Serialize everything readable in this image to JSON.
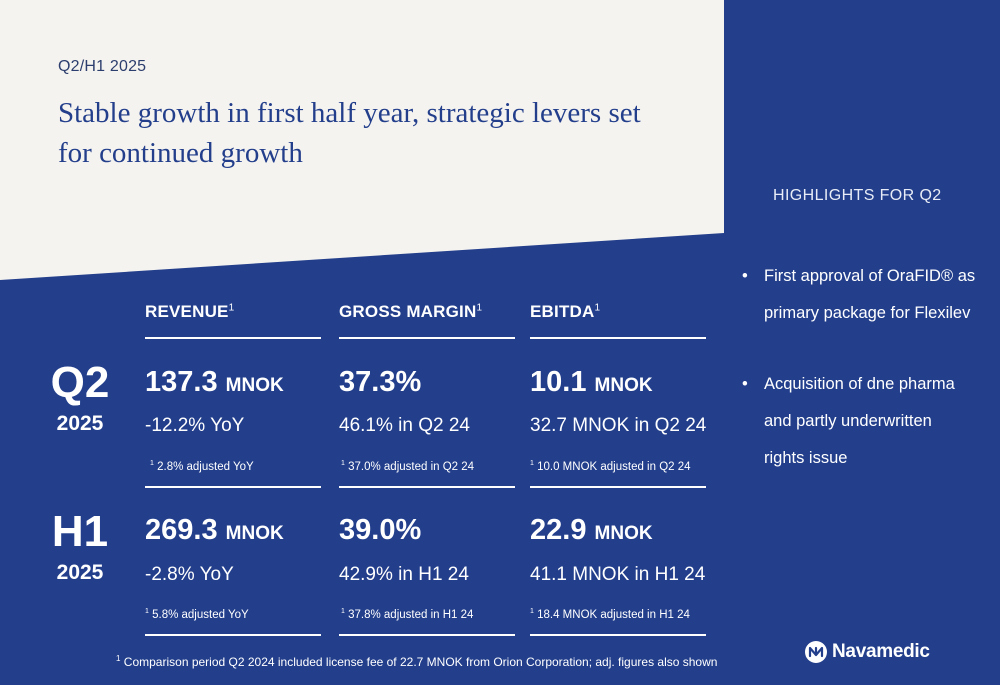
{
  "header": {
    "period": "Q2/H1 2025",
    "headline": "Stable growth in first half year, strategic levers set for continued growth"
  },
  "highlights": {
    "title": "HIGHLIGHTS FOR Q2",
    "items": [
      {
        "bullet": "•",
        "line1": "First approval of OraFID® as",
        "line2": "primary package for Flexilev",
        "line3": ""
      },
      {
        "bullet": "•",
        "line1": "Acquisition of dne pharma",
        "line2": "and partly underwritten",
        "line3": "rights issue"
      }
    ]
  },
  "columns": [
    {
      "label": "REVENUE",
      "sup": "1"
    },
    {
      "label": "GROSS MARGIN",
      "sup": "1"
    },
    {
      "label": "EBITDA",
      "sup": "1"
    }
  ],
  "periods": {
    "q2": {
      "big": "Q2",
      "year": "2025",
      "revenue": {
        "value": "137.3",
        "unit": "MNOK",
        "sub": "-12.2% YoY",
        "note_sup": "1",
        "note": "2.8% adjusted YoY"
      },
      "gross_margin": {
        "value": "37.3%",
        "unit": "",
        "sub": "46.1% in Q2 24",
        "note_sup": "1",
        "note": "37.0% adjusted in Q2 24"
      },
      "ebitda": {
        "value": "10.1",
        "unit": "MNOK",
        "sub": "32.7 MNOK in Q2 24",
        "note_sup": "1",
        "note": "10.0 MNOK adjusted in Q2 24"
      }
    },
    "h1": {
      "big": "H1",
      "year": "2025",
      "revenue": {
        "value": "269.3",
        "unit": "MNOK",
        "sub": "-2.8% YoY",
        "note_sup": "1",
        "note": "5.8% adjusted YoY"
      },
      "gross_margin": {
        "value": "39.0%",
        "unit": "",
        "sub": "42.9% in H1 24",
        "note_sup": "1",
        "note": "37.8% adjusted in H1 24"
      },
      "ebitda": {
        "value": "22.9",
        "unit": "MNOK",
        "sub": "41.1 MNOK in H1 24",
        "note_sup": "1",
        "note": "18.4 MNOK adjusted in H1 24"
      }
    }
  },
  "footnote": {
    "sup": "1",
    "text": "Comparison period Q2 2024 included license fee of 22.7 MNOK from Orion Corporation; adj. figures also shown"
  },
  "logo": {
    "text": "Navamedic",
    "icon": "navamedic-logo-icon"
  },
  "colors": {
    "brand_blue": "#233f8c",
    "panel_cream": "#f5f3ef",
    "text_white": "#ffffff"
  }
}
